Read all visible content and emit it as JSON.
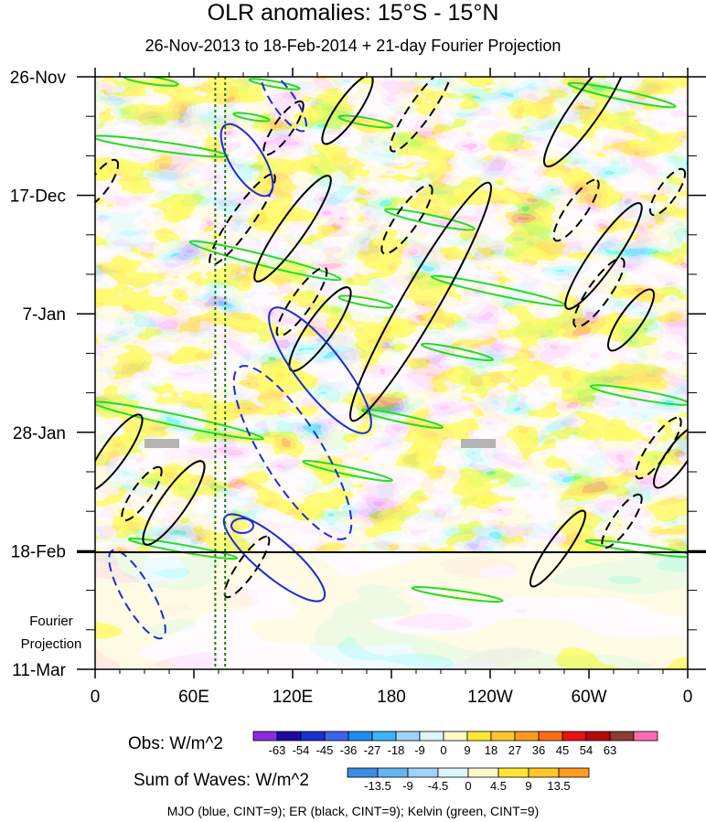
{
  "title": "OLR anomalies: 15°S - 15°N",
  "subtitle": "26-Nov-2013 to 18-Feb-2014 + 21-day Fourier Projection",
  "chart_data": {
    "type": "heatmap",
    "x_tick_labels": [
      "0",
      "60E",
      "120E",
      "180",
      "120W",
      "60W",
      "0"
    ],
    "x_values": [
      0,
      60,
      120,
      180,
      240,
      300,
      360
    ],
    "y_tick_labels": [
      "26-Nov",
      "17-Dec",
      "7-Jan",
      "28-Jan",
      "18-Feb",
      "11-Mar"
    ],
    "y_values": [
      "2013-11-26",
      "2013-12-17",
      "2014-01-07",
      "2014-01-28",
      "2014-02-18",
      "2014-03-11"
    ],
    "projection_start": "2014-02-18",
    "projection_label": [
      "Fourier",
      "Projection"
    ],
    "vertical_reference_lines": [
      73,
      79
    ],
    "obs_colorbar": {
      "label": "Obs: W/m^2",
      "levels": [
        "-63",
        "-54",
        "-45",
        "-36",
        "-27",
        "-18",
        "-9",
        "0",
        "9",
        "18",
        "27",
        "36",
        "45",
        "54",
        "63"
      ],
      "colors": [
        "#8a2be2",
        "#1e0a9c",
        "#1a2fcf",
        "#3c64e6",
        "#1e8cf0",
        "#3cb4f5",
        "#a0d2fa",
        "#dcf5ff",
        "#fff8c8",
        "#ffe632",
        "#ffc828",
        "#ff9b1e",
        "#ff6e14",
        "#e61414",
        "#b40a0a",
        "#8c3c32",
        "#ff6eb4"
      ]
    },
    "waves_colorbar": {
      "label": "Sum of Waves: W/m^2",
      "levels": [
        "-13.5",
        "-9",
        "-4.5",
        "0",
        "4.5",
        "9",
        "13.5"
      ],
      "colors": [
        "#3c8ce6",
        "#64b4f0",
        "#a0d2fa",
        "#dcf5ff",
        "#fff8c8",
        "#ffe632",
        "#ffc828",
        "#ff9b1e"
      ]
    },
    "legend_note": "MJO (blue, CINT=9); ER (black, CINT=9); Kelvin (green, CINT=9)",
    "colors": {
      "mjo": "#1a2fcf",
      "er": "#000000",
      "kelvin": "#22dd22",
      "ref_line": "#1a7a1a"
    }
  }
}
